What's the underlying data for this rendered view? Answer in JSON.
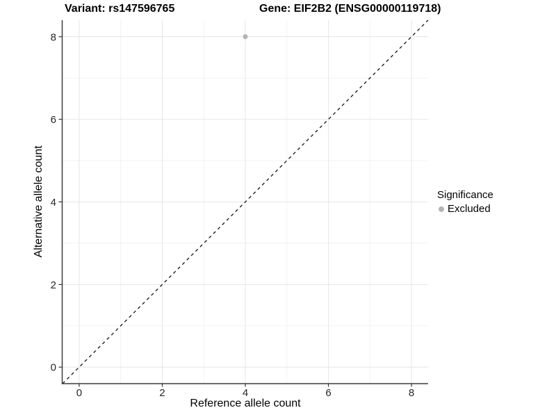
{
  "header": {
    "left_title": "Variant: rs147596765",
    "right_title": "Gene: EIF2B2 (ENSG00000119718)"
  },
  "legend": {
    "title": "Significance",
    "items": [
      {
        "label": "Excluded",
        "color": "#b4b4b4"
      }
    ]
  },
  "chart_data": {
    "type": "scatter",
    "title_left": "Variant: rs147596765",
    "title_right": "Gene: EIF2B2 (ENSG00000119718)",
    "xlabel": "Reference allele count",
    "ylabel": "Alternative allele count",
    "xlim": [
      -0.4,
      8.4
    ],
    "ylim": [
      -0.4,
      8.4
    ],
    "x_ticks": [
      0,
      2,
      4,
      6,
      8
    ],
    "y_ticks": [
      0,
      2,
      4,
      6,
      8
    ],
    "x_minor_ticks": [
      1,
      3,
      5,
      7
    ],
    "y_minor_ticks": [
      1,
      3,
      5,
      7
    ],
    "grid": "major+minor",
    "legend_position": "right",
    "series": [
      {
        "name": "Excluded",
        "color": "#b4b4b4",
        "point_radius": 3.5,
        "points": [
          [
            4,
            8
          ]
        ]
      }
    ],
    "reference_line": {
      "kind": "identity",
      "from": [
        -0.4,
        -0.4
      ],
      "to": [
        8.4,
        8.4
      ],
      "style": "dashed",
      "color": "#111111"
    }
  },
  "colors": {
    "background": "#ffffff",
    "grid_major": "#e6e6e6",
    "grid_minor": "#f2f2f2",
    "axis_line": "#3a3a3a",
    "tick_mark": "#333333",
    "tick_label": "#262626"
  }
}
